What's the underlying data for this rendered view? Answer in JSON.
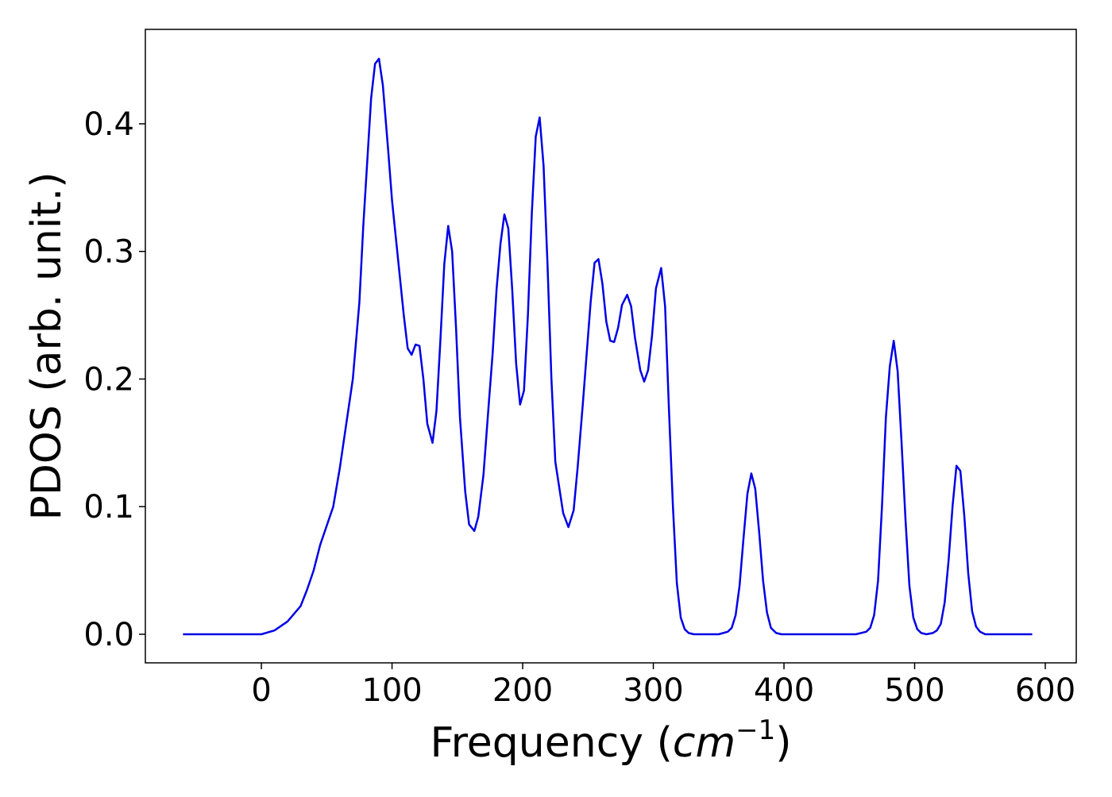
{
  "chart_data": {
    "type": "line",
    "xlabel": [
      "Frequency (",
      "cm",
      "−1",
      ")"
    ],
    "ylabel": "PDOS (arb. unit.)",
    "x": [
      -60,
      0,
      10,
      20,
      30,
      35,
      40,
      45,
      50,
      55,
      60,
      65,
      70,
      75,
      78,
      81,
      84,
      87,
      90,
      93,
      97,
      100,
      105,
      109,
      112,
      115,
      118,
      121,
      124,
      127,
      131,
      134,
      137,
      140,
      143,
      146,
      149,
      152,
      156,
      159,
      163,
      166,
      170,
      174,
      177,
      180,
      183,
      186,
      189,
      192,
      195,
      198,
      201,
      204,
      207,
      210,
      213,
      216,
      219,
      222,
      225,
      231,
      235,
      239,
      242,
      246,
      249,
      252,
      255,
      258,
      261,
      264,
      267,
      270,
      273,
      276,
      280,
      283,
      286,
      290,
      293,
      296,
      299,
      302,
      306,
      309,
      312,
      315,
      318,
      321,
      324,
      327,
      331,
      350,
      357,
      360,
      363,
      366,
      369,
      372,
      375,
      378,
      381,
      384,
      387,
      390,
      394,
      398,
      455,
      463,
      466,
      469,
      472,
      475,
      478,
      481,
      484,
      487,
      490,
      493,
      496,
      499,
      502,
      505,
      509,
      514,
      517,
      520,
      523,
      526,
      529,
      532,
      535,
      538,
      541,
      544,
      547,
      550,
      554,
      590
    ],
    "series": [
      {
        "name": "PDOS",
        "color": "#0000e6",
        "values": [
          0,
          0,
          0.003,
          0.01,
          0.022,
          0.035,
          0.05,
          0.07,
          0.085,
          0.1,
          0.13,
          0.165,
          0.2,
          0.26,
          0.32,
          0.37,
          0.42,
          0.447,
          0.451,
          0.43,
          0.38,
          0.34,
          0.29,
          0.25,
          0.224,
          0.219,
          0.227,
          0.226,
          0.2,
          0.165,
          0.15,
          0.175,
          0.23,
          0.29,
          0.32,
          0.3,
          0.24,
          0.17,
          0.112,
          0.086,
          0.081,
          0.092,
          0.125,
          0.18,
          0.22,
          0.27,
          0.306,
          0.329,
          0.318,
          0.27,
          0.212,
          0.18,
          0.191,
          0.25,
          0.33,
          0.39,
          0.405,
          0.367,
          0.29,
          0.2,
          0.135,
          0.095,
          0.084,
          0.097,
          0.13,
          0.18,
          0.22,
          0.26,
          0.291,
          0.294,
          0.275,
          0.245,
          0.23,
          0.229,
          0.24,
          0.258,
          0.266,
          0.257,
          0.232,
          0.207,
          0.198,
          0.207,
          0.234,
          0.271,
          0.287,
          0.257,
          0.175,
          0.1,
          0.04,
          0.013,
          0.004,
          0.001,
          0,
          0,
          0.002,
          0.005,
          0.015,
          0.038,
          0.075,
          0.11,
          0.126,
          0.114,
          0.08,
          0.042,
          0.017,
          0.005,
          0.001,
          0,
          0,
          0.002,
          0.005,
          0.015,
          0.042,
          0.1,
          0.17,
          0.21,
          0.23,
          0.206,
          0.15,
          0.09,
          0.038,
          0.013,
          0.004,
          0.001,
          0,
          0.001,
          0.003,
          0.008,
          0.025,
          0.058,
          0.1,
          0.132,
          0.128,
          0.093,
          0.048,
          0.018,
          0.006,
          0.002,
          0,
          0
        ]
      }
    ],
    "xlim": [
      -88.8,
      623.7
    ],
    "ylim": [
      -0.0224,
      0.474
    ],
    "xticks": [
      0,
      100,
      200,
      300,
      400,
      500,
      600
    ],
    "yticks": [
      {
        "value": 0,
        "label": "0.0"
      },
      0.1,
      0.2,
      0.3,
      0.4
    ]
  }
}
